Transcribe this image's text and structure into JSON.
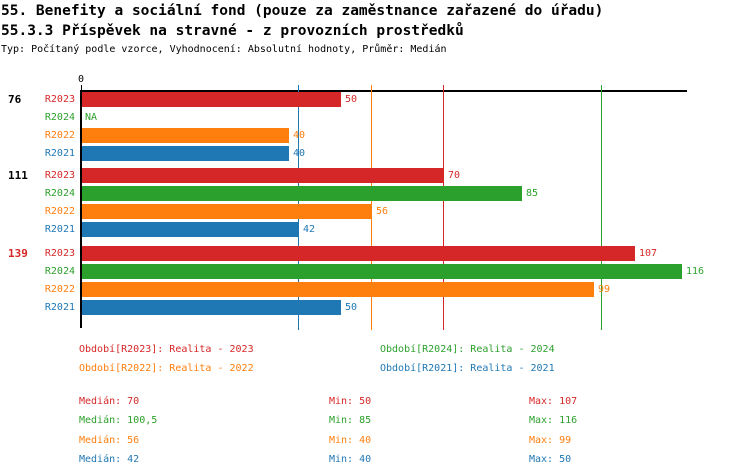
{
  "header": {
    "title_line1": "55. Benefity a sociální fond (pouze za zaměstnance zařazené do úřadu)",
    "title_line2": "55.3.3 Příspěvek na stravné - z provozních prostředků",
    "subtitle": "Typ: Počítaný podle vzorce, Vyhodnocení: Absolutní hodnoty, Průměr: Medián"
  },
  "chart_data": {
    "type": "bar",
    "orientation": "horizontal",
    "axis": {
      "zero_label": "0",
      "x_min": 0,
      "x_max": 117,
      "grid": "median-lines-per-series"
    },
    "na_label": "NA",
    "legend_position": "below",
    "series": [
      {
        "key": "R2023",
        "label": "R2023",
        "color": "#d62728",
        "median": 70,
        "median_label": "70"
      },
      {
        "key": "R2024",
        "label": "R2024",
        "color": "#2ca02c",
        "median": 100.5,
        "median_label": "100,5"
      },
      {
        "key": "R2022",
        "label": "R2022",
        "color": "#ff7f0e",
        "median": 56,
        "median_label": "56"
      },
      {
        "key": "R2021",
        "label": "R2021",
        "color": "#1f77b4",
        "median": 42,
        "median_label": "42"
      }
    ],
    "groups": [
      {
        "label": "76",
        "label_color": "#000000",
        "bars": [
          {
            "series": "R2023",
            "value": 50
          },
          {
            "series": "R2024",
            "value": null
          },
          {
            "series": "R2022",
            "value": 40
          },
          {
            "series": "R2021",
            "value": 40
          }
        ]
      },
      {
        "label": "111",
        "label_color": "#000000",
        "bars": [
          {
            "series": "R2023",
            "value": 70
          },
          {
            "series": "R2024",
            "value": 85
          },
          {
            "series": "R2022",
            "value": 56
          },
          {
            "series": "R2021",
            "value": 42
          }
        ]
      },
      {
        "label": "139",
        "label_color": "#d62728",
        "bars": [
          {
            "series": "R2023",
            "value": 107
          },
          {
            "series": "R2024",
            "value": 116
          },
          {
            "series": "R2022",
            "value": 99
          },
          {
            "series": "R2021",
            "value": 50
          }
        ]
      }
    ]
  },
  "legend": {
    "items": [
      {
        "label": "Období[R2023]: Realita - 2023",
        "color": "#d62728",
        "col": 0,
        "row": 0
      },
      {
        "label": "Období[R2024]: Realita - 2024",
        "color": "#2ca02c",
        "col": 1,
        "row": 0
      },
      {
        "label": "Období[R2022]: Realita - 2022",
        "color": "#ff7f0e",
        "col": 0,
        "row": 1
      },
      {
        "label": "Období[R2021]: Realita - 2021",
        "color": "#1f77b4",
        "col": 1,
        "row": 1
      }
    ]
  },
  "stats": {
    "rows": [
      {
        "color": "#d62728",
        "median": "Medián: 70",
        "min": "Min: 50",
        "max": "Max: 107"
      },
      {
        "color": "#2ca02c",
        "median": "Medián: 100,5",
        "min": "Min: 85",
        "max": "Max: 116"
      },
      {
        "color": "#ff7f0e",
        "median": "Medián: 56",
        "min": "Min: 40",
        "max": "Max: 99"
      },
      {
        "color": "#1f77b4",
        "median": "Medián: 42",
        "min": "Min: 40",
        "max": "Max: 50"
      }
    ]
  }
}
